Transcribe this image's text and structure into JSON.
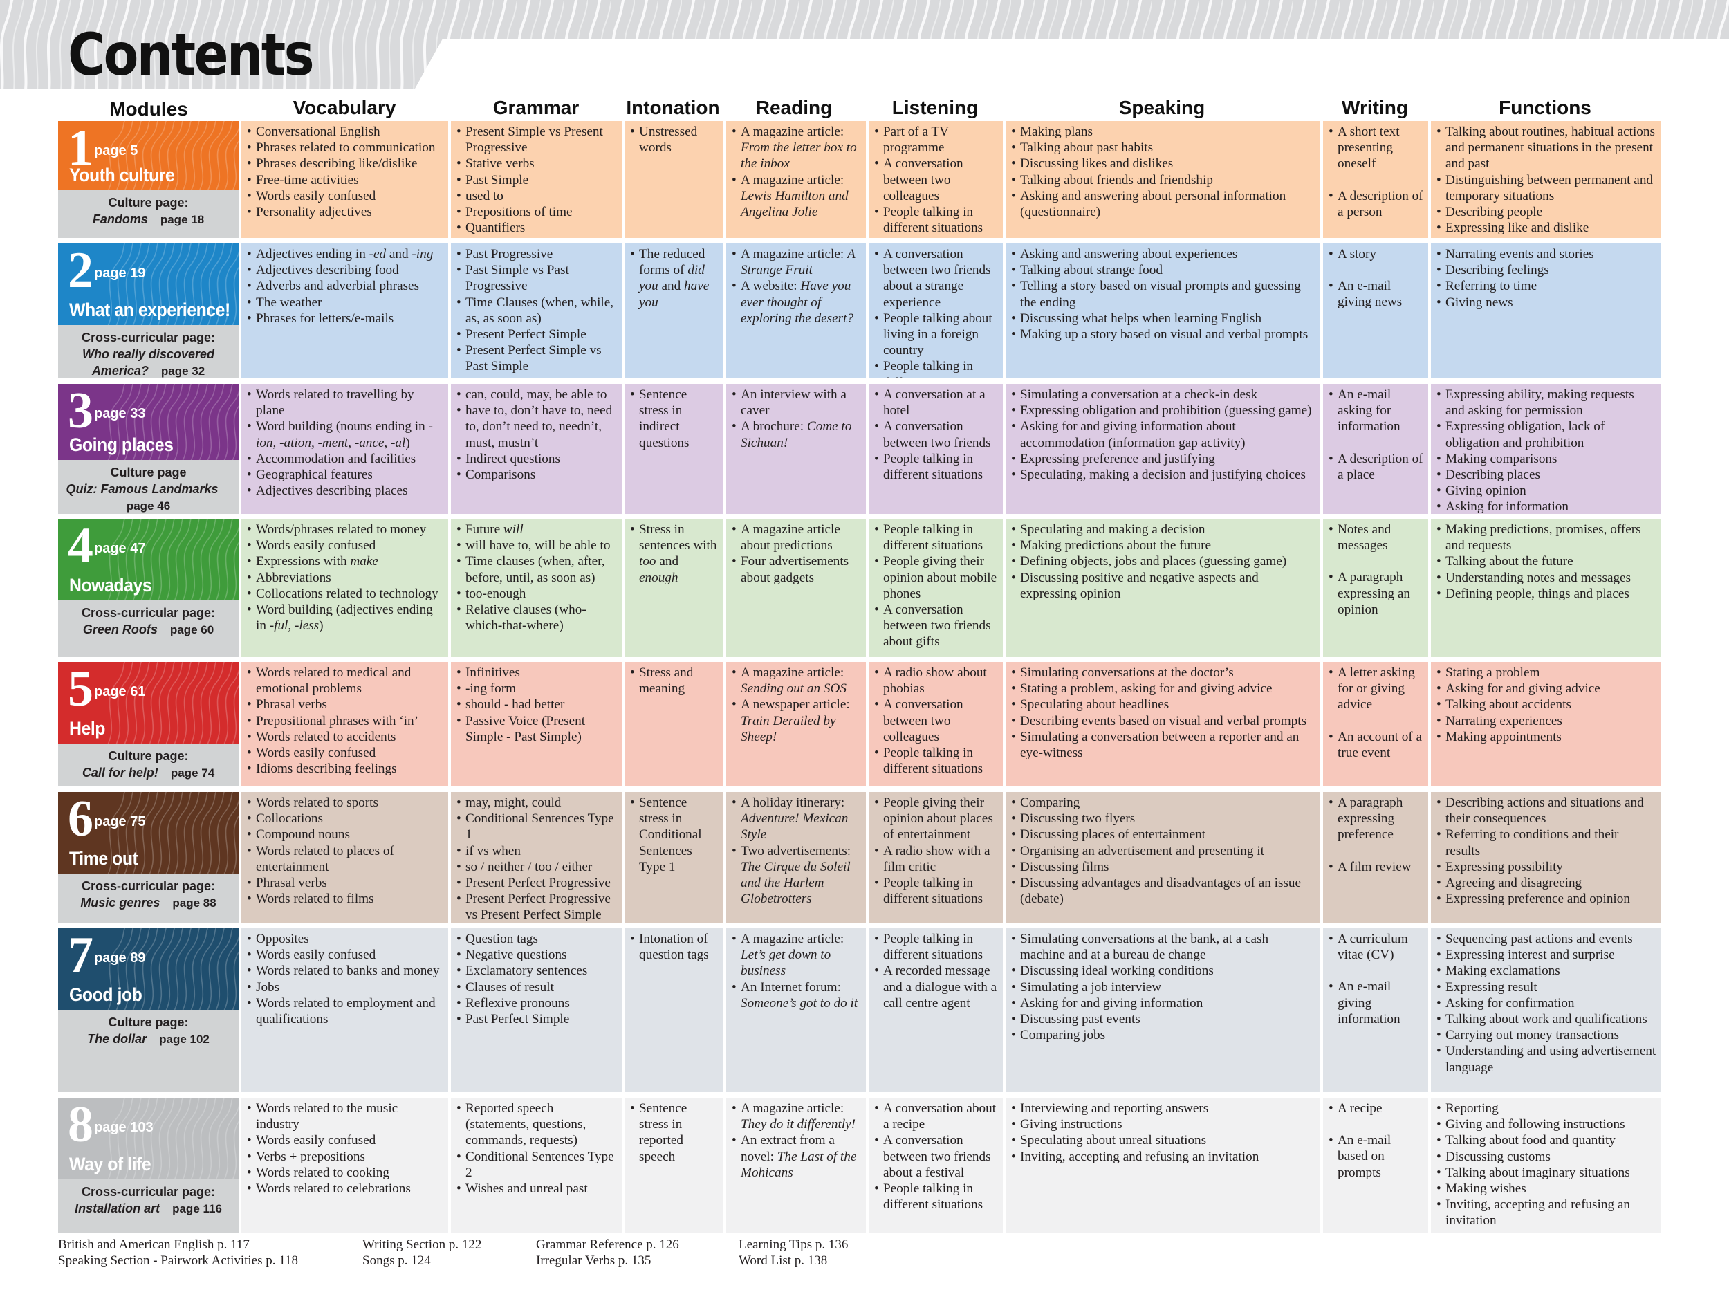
{
  "page_title": "Contents",
  "columns": [
    "Modules",
    "Vocabulary",
    "Grammar",
    "Intonation",
    "Reading",
    "Listening",
    "Speaking",
    "Writing",
    "Functions"
  ],
  "modules": [
    {
      "num": "1",
      "page": "page 5",
      "name": "Youth culture",
      "sub_label": "Culture page:",
      "sub_title": "Fandoms",
      "sub_page": "page 18",
      "vocabulary": [
        "Conversational English",
        "Phrases related to communication",
        "Phrases describing like/dislike",
        "Free-time activities",
        "Words easily confused",
        "Personality adjectives"
      ],
      "grammar": [
        "Present Simple vs Present Progressive",
        "Stative verbs",
        "Past Simple",
        "used to",
        "Prepositions of time",
        "Quantifiers"
      ],
      "intonation": [
        "Unstressed words"
      ],
      "reading": [
        "A magazine article: <i>From the letter box to the inbox</i>",
        "A magazine article: <i>Lewis Hamilton and Angelina Jolie</i>"
      ],
      "listening": [
        "Part of a TV programme",
        "A conversation between two colleagues",
        "People talking in different situations"
      ],
      "speaking": [
        "Making plans",
        "Talking about past habits",
        "Discussing likes and dislikes",
        "Talking about friends and friendship",
        "Asking and answering about personal information (questionnaire)"
      ],
      "writing": [
        "A short text presenting oneself",
        "A description of a person"
      ],
      "functions": [
        "Talking about routines, habitual actions and permanent situations in the present and past",
        "Distinguishing between permanent and temporary situations",
        "Describing people",
        "Expressing like and dislike"
      ]
    },
    {
      "num": "2",
      "page": "page 19",
      "name": "What an experience!",
      "sub_label": "Cross-curricular page:",
      "sub_title": "Who really discovered America?",
      "sub_page": "page 32",
      "vocabulary": [
        "Adjectives ending in <i>-ed</i> and <i>-ing</i>",
        "Adjectives describing food",
        "Adverbs and adverbial phrases",
        "The weather",
        "Phrases for letters/e-mails"
      ],
      "grammar": [
        "Past Progressive",
        "Past Simple vs Past Progressive",
        "Time Clauses (when, while, as, as soon as)",
        "Present Perfect Simple",
        "Present Perfect Simple vs Past Simple"
      ],
      "intonation": [
        "The reduced forms of <i>did you</i> and <i>have you</i>"
      ],
      "reading": [
        "A magazine article: <i>A Strange Fruit</i>",
        "A website: <i>Have you ever thought of exploring the desert?</i>"
      ],
      "listening": [
        "A conversation between two friends about a strange experience",
        "People talking about living in a foreign country",
        "People talking in different situations"
      ],
      "speaking": [
        "Asking and answering about experiences",
        "Talking about strange food",
        "Telling a story based on visual prompts and guessing the ending",
        "Discussing what helps when learning English",
        "Making up a story based on visual and verbal prompts"
      ],
      "writing": [
        "A story",
        "An e-mail giving news"
      ],
      "functions": [
        "Narrating events and stories",
        "Describing feelings",
        "Referring to time",
        "Giving news"
      ]
    },
    {
      "num": "3",
      "page": "page 33",
      "name": "Going places",
      "sub_label": "Culture page",
      "sub_title": "Quiz: Famous Landmarks",
      "sub_page": "page 46",
      "vocabulary": [
        "Words related to travelling by plane",
        "Word building (nouns ending in <i>-ion, -ation, -ment, -ance, -al</i>)",
        "Accommodation and facilities",
        "Geographical features",
        "Adjectives describing places"
      ],
      "grammar": [
        "can, could, may, be able to",
        "have to, don’t have to, need to, don’t need to, needn’t, must, mustn’t",
        "Indirect questions",
        "Comparisons"
      ],
      "intonation": [
        "Sentence stress in indirect questions"
      ],
      "reading": [
        "An interview with a caver",
        "A brochure: <i>Come to Sichuan!</i>"
      ],
      "listening": [
        "A conversation at a hotel",
        "A conversation between two friends",
        "People talking in different situations"
      ],
      "speaking": [
        "Simulating a conversation at a check-in desk",
        "Expressing obligation and prohibition (guessing game)",
        "Asking for and giving information about accommodation (information gap activity)",
        "Expressing preference and justifying",
        "Speculating, making a decision and justifying choices"
      ],
      "writing": [
        "An e-mail asking for information",
        "A description of a place"
      ],
      "functions": [
        "Expressing ability, making requests and asking for permission",
        "Expressing obligation, lack of obligation and prohibition",
        "Making comparisons",
        "Describing places",
        "Giving opinion",
        "Asking for information"
      ]
    },
    {
      "num": "4",
      "page": "page 47",
      "name": "Nowadays",
      "sub_label": "Cross-curricular page:",
      "sub_title": "Green Roofs",
      "sub_page": "page 60",
      "vocabulary": [
        "Words/phrases related to money",
        "Words easily confused",
        "Expressions with <i>make</i>",
        "Abbreviations",
        "Collocations related to technology",
        "Word building (adjectives ending in <i>-ful, -less</i>)"
      ],
      "grammar": [
        "Future <i>will</i>",
        "will have to, will be able to",
        "Time clauses (when, after, before, until, as soon as)",
        "too-enough",
        "Relative clauses (who-which-that-where)"
      ],
      "intonation": [
        "Stress in sentences with <i>too</i> and <i>enough</i>"
      ],
      "reading": [
        "A magazine article about predictions",
        "Four advertisements about gadgets"
      ],
      "listening": [
        "People talking in different situations",
        "People giving their opinion about mobile phones",
        "A conversation between two friends about gifts"
      ],
      "speaking": [
        "Speculating and making a decision",
        "Making predictions about the future",
        "Defining objects, jobs and places (guessing game)",
        "Discussing positive and negative aspects and expressing opinion"
      ],
      "writing": [
        "Notes and messages",
        "A paragraph expressing an opinion"
      ],
      "functions": [
        "Making predictions, promises, offers and requests",
        "Talking about the future",
        "Understanding notes and messages",
        "Defining people, things and places"
      ]
    },
    {
      "num": "5",
      "page": "page 61",
      "name": "Help",
      "sub_label": "Culture page:",
      "sub_title": "Call for help!",
      "sub_page": "page 74",
      "vocabulary": [
        "Words related to medical and emotional problems",
        "Phrasal verbs",
        "Prepositional phrases with ‘in’",
        "Words related to accidents",
        "Words easily confused",
        "Idioms describing feelings"
      ],
      "grammar": [
        "Infinitives",
        "-ing form",
        "should - had better",
        "Passive Voice (Present Simple - Past Simple)"
      ],
      "intonation": [
        "Stress and meaning"
      ],
      "reading": [
        "A magazine article: <i>Sending out an SOS</i>",
        "A newspaper article: <i>Train Derailed by Sheep!</i>"
      ],
      "listening": [
        "A radio show about phobias",
        "A conversation between two colleagues",
        "People talking in different situations"
      ],
      "speaking": [
        "Simulating conversations at the doctor’s",
        "Stating a problem, asking for and giving advice",
        "Speculating about headlines",
        "Describing events based on visual and verbal prompts",
        "Simulating a conversation between a reporter and an eye-witness"
      ],
      "writing": [
        "A letter asking for or giving advice",
        "An account of a true event"
      ],
      "functions": [
        "Stating a problem",
        "Asking for and giving advice",
        "Talking about accidents",
        "Narrating experiences",
        "Making appointments"
      ]
    },
    {
      "num": "6",
      "page": "page 75",
      "name": "Time out",
      "sub_label": "Cross-curricular page:",
      "sub_title": "Music genres",
      "sub_page": "page 88",
      "vocabulary": [
        "Words related to sports",
        "Collocations",
        "Compound nouns",
        "Words related to places of entertainment",
        "Phrasal verbs",
        "Words related to films"
      ],
      "grammar": [
        "may, might, could",
        "Conditional Sentences Type 1",
        "if vs when",
        "so / neither / too / either",
        "Present Perfect Progressive",
        "Present Perfect Progressive vs Present Perfect Simple"
      ],
      "intonation": [
        "Sentence stress in Conditional Sentences Type 1"
      ],
      "reading": [
        "A holiday itinerary: <i>Adventure! Mexican Style</i>",
        "Two advertisements: <i>The Cirque du Soleil and the Harlem Globetrotters</i>"
      ],
      "listening": [
        "People giving their opinion about places of entertainment",
        "A radio show with a film critic",
        "People talking in different situations"
      ],
      "speaking": [
        "Comparing",
        "Discussing two flyers",
        "Discussing places of entertainment",
        "Organising an advertisement and presenting it",
        "Discussing films",
        "Discussing advantages and disadvantages of an issue (debate)"
      ],
      "writing": [
        "A paragraph expressing preference",
        "A film review"
      ],
      "functions": [
        "Describing actions and situations and their consequences",
        "Referring to conditions and their results",
        "Expressing possibility",
        "Agreeing and disagreeing",
        "Expressing preference and opinion"
      ]
    },
    {
      "num": "7",
      "page": "page 89",
      "name": "Good job",
      "sub_label": "Culture page:",
      "sub_title": "The dollar",
      "sub_page": "page 102",
      "vocabulary": [
        "Opposites",
        "Words easily confused",
        "Words related to banks and money",
        "Jobs",
        "Words related to employment and qualifications"
      ],
      "grammar": [
        "Question tags",
        "Negative questions",
        "Exclamatory sentences",
        "Clauses of result",
        "Reflexive pronouns",
        "Past Perfect Simple"
      ],
      "intonation": [
        "Intonation of question tags"
      ],
      "reading": [
        "A magazine article: <i>Let’s get down to business</i>",
        "An Internet forum: <i>Someone’s got to do it</i>"
      ],
      "listening": [
        "People talking in different situations",
        "A recorded message and a dialogue with a call centre agent"
      ],
      "speaking": [
        "Simulating conversations at the bank, at a cash machine and at a bureau de change",
        "Discussing ideal working conditions",
        "Simulating a job interview",
        "Asking for and giving information",
        "Discussing past events",
        "Comparing jobs"
      ],
      "writing": [
        "A curriculum vitae (CV)",
        "An e-mail giving information"
      ],
      "functions": [
        "Sequencing past actions and events",
        "Expressing interest and surprise",
        "Making exclamations",
        "Expressing result",
        "Asking for confirmation",
        "Talking about work and qualifications",
        "Carrying out money transactions",
        "Understanding and using advertisement language"
      ]
    },
    {
      "num": "8",
      "page": "page 103",
      "name": "Way of life",
      "sub_label": "Cross-curricular page:",
      "sub_title": "Installation art",
      "sub_page": "page 116",
      "vocabulary": [
        "Words related to the music industry",
        "Words easily confused",
        "Verbs + prepositions",
        "Words related to cooking",
        "Words related to celebrations"
      ],
      "grammar": [
        "Reported speech (statements, questions, commands, requests)",
        "Conditional Sentences Type 2",
        "Wishes and unreal past"
      ],
      "intonation": [
        "Sentence stress in reported speech"
      ],
      "reading": [
        "A magazine article: <i>They do it differently!</i>",
        "An extract from a novel: <i>The Last of the Mohicans</i>"
      ],
      "listening": [
        "A conversation about a recipe",
        "A conversation between two friends about a festival",
        "People talking in different situations"
      ],
      "speaking": [
        "Interviewing and reporting answers",
        "Giving instructions",
        "Speculating about unreal situations",
        "Inviting, accepting and refusing an invitation"
      ],
      "writing": [
        "A recipe",
        "An e-mail based on prompts"
      ],
      "functions": [
        "Reporting",
        "Giving and following instructions",
        "Talking about food and quantity",
        "Discussing customs",
        "Talking about imaginary situations",
        "Making wishes",
        "Inviting, accepting and refusing an invitation"
      ]
    }
  ],
  "footer": [
    [
      "British and American English p. 117",
      "Speaking Section - Pairwork Activities p. 118"
    ],
    [
      "Writing Section p. 122",
      "Songs p. 124"
    ],
    [
      "Grammar Reference p. 126",
      "Irregular Verbs p. 135"
    ],
    [
      "Learning Tips p. 136",
      "Word List p. 138"
    ]
  ],
  "colors": {
    "module_boxes": [
      "#ee7424",
      "#1e86c8",
      "#7b3589",
      "#3f9c3b",
      "#d42c2c",
      "#5f3621",
      "#1f4e6e",
      "#bcbec0"
    ],
    "cell_fills": [
      "#fcd2af",
      "#c5d9ef",
      "#dccbe3",
      "#d8e8cf",
      "#f7c8bc",
      "#dbcbc0",
      "#dfe3e8",
      "#f1f1f2"
    ],
    "subpanel": "#d1d3d4",
    "banner": "#d4d5d7"
  }
}
